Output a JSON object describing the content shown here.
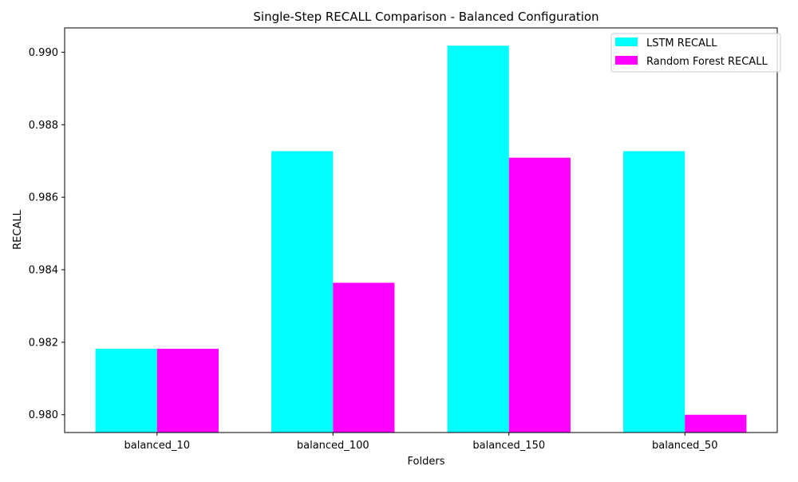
{
  "chart_data": {
    "type": "bar",
    "title": "Single-Step RECALL Comparison - Balanced Configuration",
    "xlabel": "Folders",
    "ylabel": "RECALL",
    "categories": [
      "balanced_10",
      "balanced_100",
      "balanced_150",
      "balanced_50"
    ],
    "series": [
      {
        "name": "LSTM RECALL",
        "color": "#00ffff",
        "values": [
          0.98182,
          0.98727,
          0.99018,
          0.98727
        ]
      },
      {
        "name": "Random Forest RECALL",
        "color": "#ff00ff",
        "values": [
          0.98182,
          0.98364,
          0.98709,
          0.98
        ]
      }
    ],
    "ylim": [
      0.97951,
      0.99067
    ],
    "yticks": [
      0.98,
      0.982,
      0.984,
      0.986,
      0.988,
      0.99
    ],
    "ytick_labels": [
      "0.980",
      "0.982",
      "0.984",
      "0.986",
      "0.988",
      "0.990"
    ],
    "grid": false,
    "legend_position": "top-right"
  }
}
